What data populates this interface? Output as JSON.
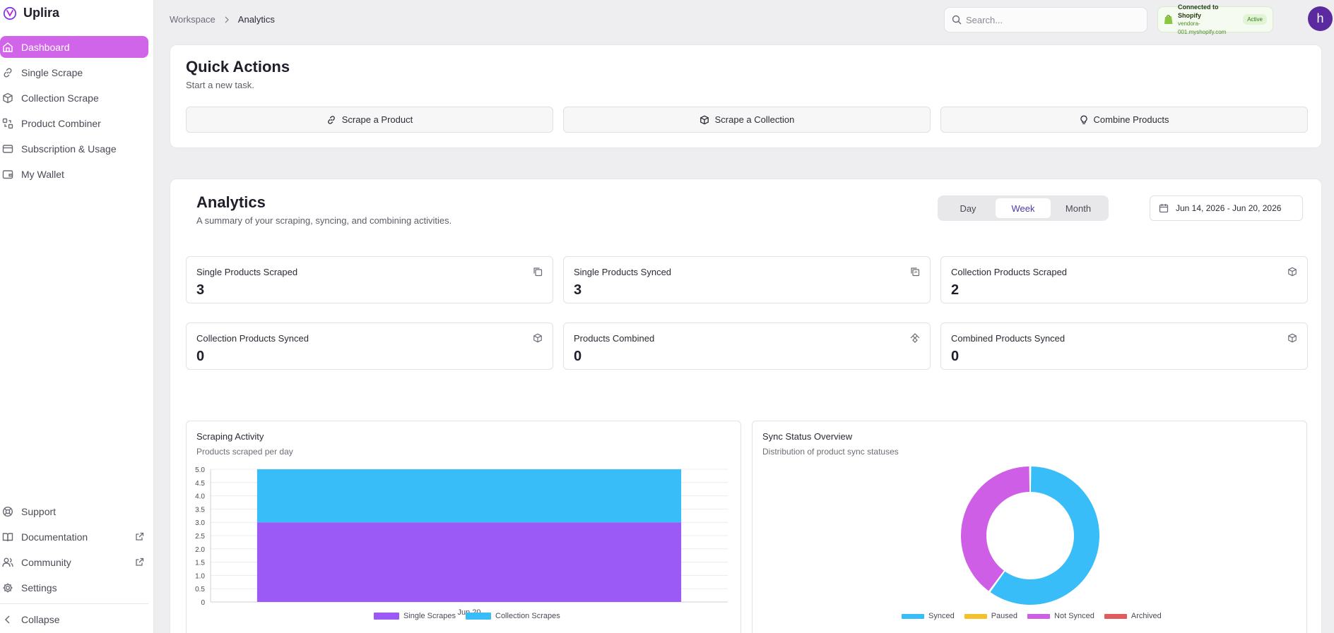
{
  "app": {
    "name": "Uplira"
  },
  "sidebar": {
    "items": [
      {
        "label": "Dashboard",
        "icon": "home-icon",
        "active": true
      },
      {
        "label": "Single Scrape",
        "icon": "link-icon"
      },
      {
        "label": "Collection Scrape",
        "icon": "box-icon"
      },
      {
        "label": "Product Combiner",
        "icon": "combine-icon"
      },
      {
        "label": "Subscription & Usage",
        "icon": "card-icon"
      },
      {
        "label": "My Wallet",
        "icon": "wallet-icon"
      }
    ],
    "bottom": [
      {
        "label": "Support",
        "icon": "lifebuoy-icon"
      },
      {
        "label": "Documentation",
        "icon": "book-icon",
        "external": true
      },
      {
        "label": "Community",
        "icon": "users-icon",
        "external": true
      },
      {
        "label": "Settings",
        "icon": "gear-icon"
      }
    ],
    "collapse_label": "Collapse"
  },
  "header": {
    "breadcrumb": [
      "Workspace",
      "Analytics"
    ],
    "search_placeholder": "Search...",
    "shopify": {
      "title": "Connected to Shopify",
      "domain": "vendora-001.myshopify.com",
      "status": "Active"
    },
    "avatar_initial": "h"
  },
  "quick_actions": {
    "title": "Quick Actions",
    "subtitle": "Start a new task.",
    "buttons": [
      {
        "label": "Scrape a Product",
        "icon": "link-icon"
      },
      {
        "label": "Scrape a Collection",
        "icon": "box-icon"
      },
      {
        "label": "Combine Products",
        "icon": "lightbulb-icon"
      }
    ]
  },
  "analytics": {
    "title": "Analytics",
    "subtitle": "A summary of your scraping, syncing, and combining activities.",
    "periods": [
      "Day",
      "Week",
      "Month"
    ],
    "active_period": "Week",
    "date_range": "Jun 14, 2026 - Jun 20, 2026",
    "stats": [
      {
        "label": "Single Products Scraped",
        "value": "3",
        "icon": "copy-icon"
      },
      {
        "label": "Single Products Synced",
        "value": "3",
        "icon": "copy-sync-icon"
      },
      {
        "label": "Collection Products Scraped",
        "value": "2",
        "icon": "box-icon"
      },
      {
        "label": "Collection Products Synced",
        "value": "0",
        "icon": "box-sync-icon"
      },
      {
        "label": "Products Combined",
        "value": "0",
        "icon": "combine-icon"
      },
      {
        "label": "Combined Products Synced",
        "value": "0",
        "icon": "box-sync-icon"
      }
    ],
    "scraping_chart": {
      "title": "Scraping Activity",
      "subtitle": "Products scraped per day"
    },
    "sync_chart": {
      "title": "Sync Status Overview",
      "subtitle": "Distribution of product sync statuses"
    }
  },
  "chart_data": [
    {
      "type": "bar",
      "stacked": true,
      "categories": [
        "Jun 20"
      ],
      "series": [
        {
          "name": "Single Scrapes",
          "values": [
            3
          ],
          "color": "#9b59f5"
        },
        {
          "name": "Collection Scrapes",
          "values": [
            2
          ],
          "color": "#38bdf8"
        }
      ],
      "ylim": [
        0,
        5
      ],
      "yticks": [
        "0",
        "0.5",
        "1.0",
        "1.5",
        "2.0",
        "2.5",
        "3.0",
        "3.5",
        "4.0",
        "4.5",
        "5.0"
      ],
      "grid": true,
      "legend": "bottom"
    },
    {
      "type": "pie",
      "donut": true,
      "slices": [
        {
          "name": "Synced",
          "value": 3,
          "color": "#38bdf8"
        },
        {
          "name": "Paused",
          "value": 0,
          "color": "#f2c12e"
        },
        {
          "name": "Not Synced",
          "value": 2,
          "color": "#cf5ee6"
        },
        {
          "name": "Archived",
          "value": 0,
          "color": "#e05c5c"
        }
      ],
      "legend": "bottom"
    }
  ]
}
